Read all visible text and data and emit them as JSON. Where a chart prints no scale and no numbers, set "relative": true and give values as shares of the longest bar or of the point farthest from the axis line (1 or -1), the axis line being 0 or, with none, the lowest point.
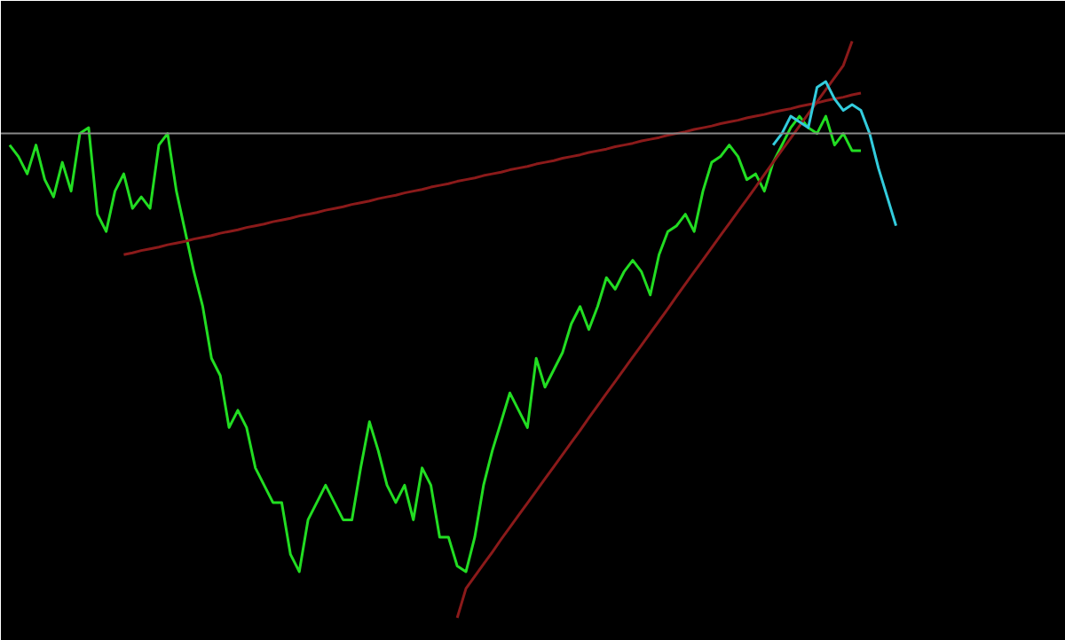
{
  "chart_data": {
    "type": "line",
    "relative": true,
    "tick_labels": false,
    "grid": false,
    "categories": [
      null,
      null,
      null,
      null,
      null,
      null,
      null,
      null,
      null,
      null,
      null,
      null,
      null,
      null,
      null,
      null,
      null,
      null,
      null,
      null,
      null,
      null,
      null,
      null,
      null,
      null,
      null,
      null,
      null,
      null,
      null,
      null,
      null,
      null,
      null,
      null,
      null,
      null,
      null,
      null,
      null,
      null,
      null,
      null,
      null,
      null,
      null,
      null,
      null,
      null,
      null,
      null,
      null,
      null,
      null,
      null,
      null,
      null,
      null,
      null,
      null,
      null,
      null,
      null,
      null,
      null,
      null,
      null,
      null,
      null,
      null,
      null,
      null,
      null,
      null,
      null,
      null,
      null,
      null,
      null,
      null,
      null,
      null,
      null,
      null,
      null,
      null,
      null,
      null,
      null,
      null,
      null,
      null,
      null,
      null,
      null,
      null,
      null,
      null,
      null,
      null,
      null
    ],
    "series": [
      {
        "color": "#22dd22",
        "values": [
          0.82,
          0.8,
          0.77,
          0.82,
          0.76,
          0.73,
          0.79,
          0.74,
          0.84,
          0.85,
          0.7,
          0.67,
          0.74,
          0.77,
          0.71,
          0.73,
          0.71,
          0.82,
          0.84,
          0.74,
          0.67,
          0.6,
          0.54,
          0.45,
          0.42,
          0.33,
          0.36,
          0.33,
          0.26,
          0.23,
          0.2,
          0.2,
          0.11,
          0.08,
          0.17,
          0.2,
          0.23,
          0.2,
          0.17,
          0.17,
          0.26,
          0.34,
          0.29,
          0.23,
          0.2,
          0.23,
          0.17,
          0.26,
          0.23,
          0.14,
          0.14,
          0.09,
          0.08,
          0.14,
          0.23,
          0.29,
          0.34,
          0.39,
          0.36,
          0.33,
          0.45,
          0.4,
          0.43,
          0.46,
          0.51,
          0.54,
          0.5,
          0.54,
          0.59,
          0.57,
          0.6,
          0.62,
          0.6,
          0.56,
          0.63,
          0.67,
          0.68,
          0.7,
          0.67,
          0.74,
          0.79,
          0.8,
          0.82,
          0.8,
          0.76,
          0.77,
          0.74,
          0.79,
          0.82,
          0.85,
          0.87,
          0.85,
          0.84,
          0.87,
          0.82,
          0.84,
          0.81,
          0.81,
          null,
          null,
          null,
          null
        ]
      },
      {
        "color": "#8b1a1a",
        "values": [
          null,
          null,
          null,
          null,
          null,
          null,
          null,
          null,
          null,
          null,
          null,
          null,
          null,
          0.63,
          0.633,
          0.637,
          0.64,
          0.643,
          0.647,
          0.65,
          0.653,
          0.657,
          0.66,
          0.663,
          0.667,
          0.67,
          0.673,
          0.677,
          0.68,
          0.683,
          0.687,
          0.69,
          0.693,
          0.697,
          0.7,
          0.703,
          0.707,
          0.71,
          0.713,
          0.717,
          0.72,
          0.723,
          0.727,
          0.73,
          0.733,
          0.737,
          0.74,
          0.743,
          0.747,
          0.75,
          0.753,
          0.757,
          0.76,
          0.763,
          0.767,
          0.77,
          0.773,
          0.777,
          0.78,
          0.783,
          0.787,
          0.79,
          0.793,
          0.797,
          0.8,
          0.803,
          0.807,
          0.81,
          0.813,
          0.817,
          0.82,
          0.823,
          0.827,
          0.83,
          0.833,
          0.837,
          0.84,
          0.843,
          0.847,
          0.85,
          0.853,
          0.857,
          0.86,
          0.863,
          0.867,
          0.87,
          0.873,
          0.877,
          0.88,
          0.883,
          0.887,
          0.89,
          0.893,
          0.897,
          0.9,
          0.903,
          0.907,
          0.91,
          null,
          null,
          null,
          null
        ]
      },
      {
        "color": "#8b1a1a",
        "values": [
          null,
          null,
          null,
          null,
          null,
          null,
          null,
          null,
          null,
          null,
          null,
          null,
          null,
          null,
          null,
          null,
          null,
          null,
          null,
          null,
          null,
          null,
          null,
          null,
          null,
          null,
          null,
          null,
          null,
          null,
          null,
          null,
          null,
          null,
          null,
          null,
          null,
          null,
          null,
          null,
          null,
          null,
          null,
          null,
          null,
          null,
          null,
          null,
          null,
          null,
          null,
          0.0,
          0.051,
          0.072,
          0.093,
          0.114,
          0.136,
          0.157,
          0.178,
          0.199,
          0.22,
          0.241,
          0.262,
          0.283,
          0.304,
          0.325,
          0.347,
          0.368,
          0.389,
          0.41,
          0.431,
          0.452,
          0.473,
          0.494,
          0.515,
          0.536,
          0.558,
          0.579,
          0.6,
          0.621,
          0.642,
          0.663,
          0.684,
          0.705,
          0.726,
          0.747,
          0.769,
          0.79,
          0.811,
          0.832,
          0.853,
          0.874,
          0.895,
          0.916,
          0.937,
          0.958,
          1.0,
          null,
          null,
          null,
          null,
          null
        ]
      },
      {
        "color": "#33ccdd",
        "values": [
          null,
          null,
          null,
          null,
          null,
          null,
          null,
          null,
          null,
          null,
          null,
          null,
          null,
          null,
          null,
          null,
          null,
          null,
          null,
          null,
          null,
          null,
          null,
          null,
          null,
          null,
          null,
          null,
          null,
          null,
          null,
          null,
          null,
          null,
          null,
          null,
          null,
          null,
          null,
          null,
          null,
          null,
          null,
          null,
          null,
          null,
          null,
          null,
          null,
          null,
          null,
          null,
          null,
          null,
          null,
          null,
          null,
          null,
          null,
          null,
          null,
          null,
          null,
          null,
          null,
          null,
          null,
          null,
          null,
          null,
          null,
          null,
          null,
          null,
          null,
          null,
          null,
          null,
          null,
          null,
          null,
          null,
          null,
          null,
          null,
          null,
          null,
          0.82,
          0.84,
          0.87,
          0.86,
          0.85,
          0.92,
          0.93,
          0.9,
          0.88,
          0.89,
          0.88,
          0.84,
          0.78,
          0.73,
          0.68
        ]
      }
    ],
    "ref_lines": [
      {
        "axis": "y",
        "value": 0.84,
        "color": "#888888"
      }
    ]
  }
}
